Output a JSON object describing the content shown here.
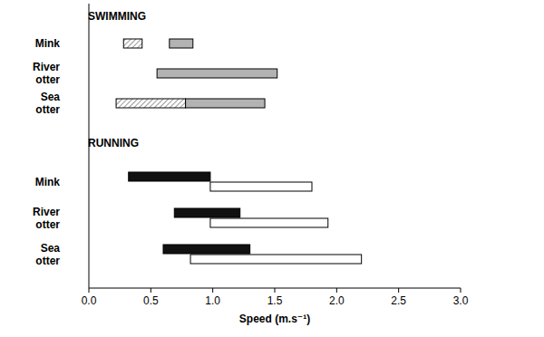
{
  "chart_data": {
    "type": "bar",
    "orientation": "horizontal",
    "xlabel": "Speed (m.s⁻¹)",
    "xlim": [
      0,
      3
    ],
    "xticks": [
      {
        "value": 0,
        "label": "0.0"
      },
      {
        "value": 0.5,
        "label": "0.5"
      },
      {
        "value": 1,
        "label": "1.0"
      },
      {
        "value": 1.5,
        "label": "1.5"
      },
      {
        "value": 2,
        "label": "2.0"
      },
      {
        "value": 2.5,
        "label": "2.5"
      },
      {
        "value": 3,
        "label": "3.0"
      }
    ],
    "grid": false,
    "panels": [
      {
        "title": "SWIMMING",
        "categories": [
          "Mink",
          "River otter",
          "Sea otter"
        ],
        "series": [
          {
            "color": "#ffffff",
            "low": [
              0.28,
              null,
              0.22
            ],
            "high": [
              0.43,
              null,
              0.78
            ]
          },
          {
            "color": "#b3b3b3",
            "low": [
              0.65,
              0.55,
              0.78
            ],
            "high": [
              0.84,
              1.52,
              1.42
            ]
          }
        ]
      },
      {
        "title": "RUNNING",
        "categories": [
          "Mink",
          "River otter",
          "Sea otter"
        ],
        "series": [
          {
            "color": "#111111",
            "low": [
              0.32,
              0.69,
              0.6
            ],
            "high": [
              0.98,
              1.22,
              1.3
            ]
          },
          {
            "color": "#ffffff",
            "low": [
              0.98,
              0.98,
              0.82
            ],
            "high": [
              1.8,
              1.93,
              2.2
            ]
          }
        ]
      }
    ]
  }
}
